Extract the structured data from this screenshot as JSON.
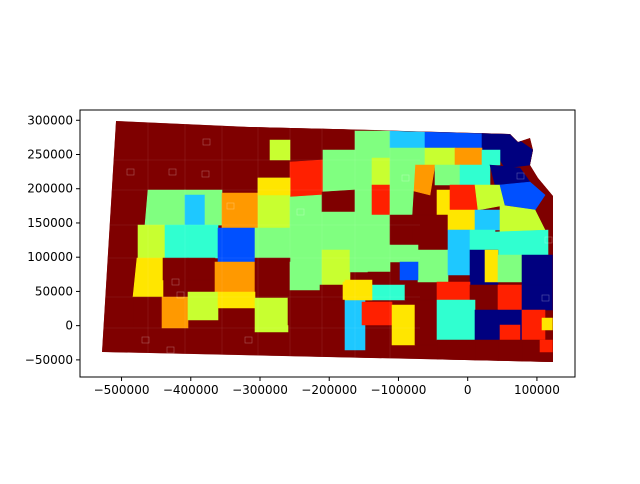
{
  "chart_data": {
    "type": "choropleth-map",
    "title": "",
    "xlabel": "",
    "ylabel": "",
    "xlim": [
      -560000,
      155000
    ],
    "ylim": [
      -75000,
      315000
    ],
    "x_ticks": [
      {
        "value": -500000,
        "label": "−500000"
      },
      {
        "value": -400000,
        "label": "−400000"
      },
      {
        "value": -300000,
        "label": "−300000"
      },
      {
        "value": -200000,
        "label": "−200000"
      },
      {
        "value": -100000,
        "label": "−100000"
      },
      {
        "value": 0,
        "label": "0"
      },
      {
        "value": 100000,
        "label": "100000"
      }
    ],
    "y_ticks": [
      {
        "value": -50000,
        "label": "−50000"
      },
      {
        "value": 0,
        "label": "0"
      },
      {
        "value": 50000,
        "label": "50000"
      },
      {
        "value": 100000,
        "label": "100000"
      },
      {
        "value": 150000,
        "label": "150000"
      },
      {
        "value": 200000,
        "label": "200000"
      },
      {
        "value": 250000,
        "label": "250000"
      },
      {
        "value": 300000,
        "label": "300000"
      }
    ],
    "colormap": "jet",
    "region_colors": {
      "dark_red": "#7f0000",
      "red": "#ff2000",
      "orange": "#ff9900",
      "yellow": "#ffe600",
      "yellow_green": "#c8ff30",
      "green": "#80ff80",
      "cyan": "#30ffd0",
      "light_blue": "#1ec8ff",
      "blue": "#0050ff",
      "dark_blue": "#00007f"
    }
  }
}
